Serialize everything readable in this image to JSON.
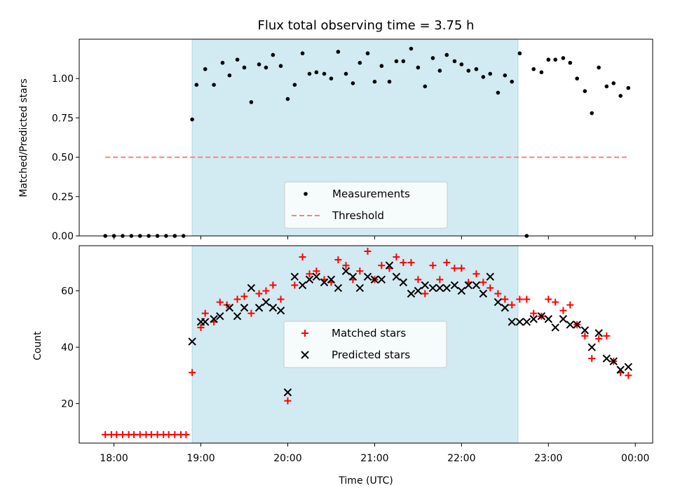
{
  "chart_data": [
    {
      "type": "scatter",
      "title": "Flux total observing time = 3.75 h",
      "xlabel": "",
      "ylabel": "Matched/Predicted stars",
      "xlim": [
        17.6,
        24.2
      ],
      "ylim": [
        0.0,
        1.25
      ],
      "yticks": [
        0.0,
        0.25,
        0.5,
        0.75,
        1.0
      ],
      "ytick_labels": [
        "0.00",
        "0.25",
        "0.50",
        "0.75",
        "1.00"
      ],
      "shaded_span": {
        "x0": 18.9,
        "x1": 22.65,
        "color": "#add8e6"
      },
      "legend": {
        "location": "lower-center",
        "entries": [
          "Measurements",
          "Threshold"
        ]
      },
      "series": [
        {
          "name": "Measurements",
          "marker": "dot",
          "color": "#000000",
          "x": [
            17.9,
            18.0,
            18.1,
            18.2,
            18.3,
            18.4,
            18.5,
            18.6,
            18.7,
            18.8,
            18.9,
            18.95,
            19.05,
            19.15,
            19.25,
            19.33,
            19.42,
            19.5,
            19.58,
            19.67,
            19.75,
            19.83,
            19.92,
            20.0,
            20.08,
            20.17,
            20.25,
            20.33,
            20.42,
            20.5,
            20.58,
            20.67,
            20.75,
            20.83,
            20.92,
            21.0,
            21.08,
            21.17,
            21.25,
            21.33,
            21.42,
            21.5,
            21.58,
            21.67,
            21.75,
            21.83,
            21.92,
            22.0,
            22.08,
            22.17,
            22.25,
            22.33,
            22.42,
            22.5,
            22.58,
            22.67,
            22.75,
            22.83,
            22.92,
            23.0,
            23.08,
            23.17,
            23.25,
            23.33,
            23.42,
            23.5,
            23.58,
            23.67,
            23.75,
            23.83,
            23.92
          ],
          "values": [
            0.0,
            0.0,
            0.0,
            0.0,
            0.0,
            0.0,
            0.0,
            0.0,
            0.0,
            0.0,
            0.74,
            0.96,
            1.06,
            0.96,
            1.1,
            1.02,
            1.12,
            1.07,
            0.85,
            1.09,
            1.07,
            1.15,
            1.08,
            0.87,
            0.96,
            1.16,
            1.03,
            1.04,
            1.03,
            1.0,
            1.17,
            1.03,
            0.97,
            1.1,
            1.16,
            0.98,
            1.08,
            0.98,
            1.11,
            1.11,
            1.19,
            1.07,
            0.95,
            1.13,
            1.05,
            1.15,
            1.11,
            1.09,
            1.05,
            1.06,
            1.01,
            1.03,
            0.91,
            1.02,
            0.98,
            1.16,
            0.0,
            1.06,
            1.04,
            1.12,
            1.12,
            1.13,
            1.1,
            1.0,
            0.92,
            0.78,
            1.07,
            0.95,
            0.97,
            0.89,
            0.94
          ]
        },
        {
          "name": "Threshold",
          "marker": "dashed-line",
          "color": "#ff7f7f",
          "x": [
            17.9,
            23.9
          ],
          "values": [
            0.5,
            0.5
          ]
        }
      ]
    },
    {
      "type": "scatter",
      "title": "",
      "xlabel": "Time (UTC)",
      "ylabel": "Count",
      "xlim": [
        17.6,
        24.2
      ],
      "ylim": [
        6,
        76
      ],
      "yticks": [
        20,
        40,
        60
      ],
      "ytick_labels": [
        "20",
        "40",
        "60"
      ],
      "xticks": [
        18,
        19,
        20,
        21,
        22,
        23,
        24
      ],
      "xtick_labels": [
        "18:00",
        "19:00",
        "20:00",
        "21:00",
        "22:00",
        "23:00",
        "00:00"
      ],
      "shaded_span": {
        "x0": 18.9,
        "x1": 22.65,
        "color": "#add8e6"
      },
      "legend": {
        "location": "center",
        "entries": [
          "Matched stars",
          "Predicted stars"
        ]
      },
      "series": [
        {
          "name": "Matched stars",
          "marker": "plus",
          "color": "#ff0000",
          "x": [
            17.9,
            17.97,
            18.03,
            18.1,
            18.17,
            18.23,
            18.3,
            18.37,
            18.43,
            18.5,
            18.57,
            18.63,
            18.7,
            18.77,
            18.83,
            18.9,
            19.0,
            19.05,
            19.15,
            19.22,
            19.3,
            19.42,
            19.5,
            19.58,
            19.67,
            19.75,
            19.83,
            19.92,
            20.0,
            20.08,
            20.17,
            20.25,
            20.33,
            20.42,
            20.5,
            20.58,
            20.67,
            20.75,
            20.83,
            20.92,
            21.0,
            21.08,
            21.17,
            21.25,
            21.33,
            21.42,
            21.5,
            21.58,
            21.67,
            21.75,
            21.83,
            21.92,
            22.0,
            22.08,
            22.17,
            22.25,
            22.33,
            22.42,
            22.5,
            22.58,
            22.67,
            22.75,
            22.83,
            22.92,
            23.0,
            23.08,
            23.17,
            23.25,
            23.33,
            23.42,
            23.5,
            23.58,
            23.67,
            23.75,
            23.83,
            23.92
          ],
          "values": [
            9,
            9,
            9,
            9,
            9,
            9,
            9,
            9,
            9,
            9,
            9,
            9,
            9,
            9,
            9,
            31,
            47,
            52,
            49,
            56,
            55,
            57,
            58,
            52,
            59,
            60,
            62,
            57,
            21,
            62,
            72,
            66,
            67,
            64,
            63,
            71,
            69,
            64,
            67,
            74,
            64,
            69,
            68,
            72,
            70,
            70,
            64,
            59,
            69,
            64,
            70,
            68,
            68,
            63,
            66,
            63,
            61,
            59,
            57,
            55,
            57,
            57,
            52,
            51,
            57,
            56,
            53,
            55,
            48,
            44,
            36,
            43,
            44,
            35,
            31,
            30
          ]
        },
        {
          "name": "Predicted stars",
          "marker": "x",
          "color": "#000000",
          "x": [
            18.9,
            19.0,
            19.05,
            19.15,
            19.22,
            19.33,
            19.42,
            19.5,
            19.58,
            19.67,
            19.75,
            19.83,
            19.92,
            20.0,
            20.08,
            20.17,
            20.25,
            20.33,
            20.42,
            20.5,
            20.58,
            20.67,
            20.75,
            20.83,
            20.92,
            21.0,
            21.08,
            21.17,
            21.25,
            21.33,
            21.42,
            21.5,
            21.58,
            21.67,
            21.75,
            21.83,
            21.92,
            22.0,
            22.08,
            22.17,
            22.25,
            22.33,
            22.42,
            22.5,
            22.58,
            22.67,
            22.75,
            22.83,
            22.92,
            23.0,
            23.08,
            23.17,
            23.25,
            23.33,
            23.42,
            23.5,
            23.58,
            23.67,
            23.75,
            23.83,
            23.92
          ],
          "values": [
            42,
            49,
            49,
            50,
            51,
            54,
            51,
            54,
            61,
            54,
            56,
            54,
            53,
            24,
            65,
            62,
            64,
            65,
            63,
            64,
            61,
            67,
            65,
            61,
            65,
            64,
            64,
            69,
            65,
            63,
            59,
            60,
            62,
            61,
            61,
            61,
            62,
            60,
            62,
            62,
            59,
            65,
            56,
            54,
            49,
            49,
            49,
            50,
            51,
            50,
            47,
            50,
            48,
            48,
            46,
            40,
            45,
            36,
            35,
            32,
            33
          ]
        }
      ]
    }
  ]
}
